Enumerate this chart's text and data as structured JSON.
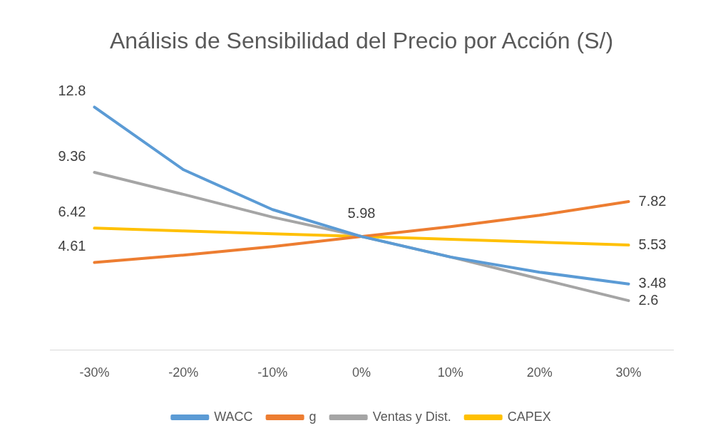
{
  "chart_data": {
    "type": "line",
    "title": "Análisis de Sensibilidad del Precio por Acción (S/)",
    "categories": [
      "-30%",
      "-20%",
      "-10%",
      "0%",
      "10%",
      "20%",
      "30%"
    ],
    "tick_labels": "x",
    "grid": false,
    "legend": "bottom",
    "marker": "none",
    "line_style": "solid",
    "series": [
      {
        "name": "WACC",
        "color": "#5b9bd5",
        "values": [
          12.8,
          9.5,
          7.4,
          5.98,
          4.9,
          4.1,
          3.48
        ],
        "value_labels": [
          "12.8",
          null,
          null,
          null,
          null,
          null,
          "3.48"
        ]
      },
      {
        "name": "g",
        "color": "#ed7d31",
        "values": [
          4.61,
          5.0,
          5.45,
          5.98,
          6.5,
          7.1,
          7.82
        ],
        "value_labels": [
          "4.61",
          null,
          null,
          "5.98",
          null,
          null,
          "7.82"
        ]
      },
      {
        "name": "Ventas y Dist.",
        "color": "#a5a5a5",
        "values": [
          9.36,
          8.2,
          7.0,
          5.98,
          4.9,
          3.75,
          2.6
        ],
        "value_labels": [
          "9.36",
          null,
          null,
          null,
          null,
          null,
          "2.6"
        ]
      },
      {
        "name": "CAPEX",
        "color": "#ffc000",
        "values": [
          6.42,
          6.27,
          6.12,
          5.98,
          5.83,
          5.68,
          5.53
        ],
        "value_labels": [
          "6.42",
          null,
          null,
          null,
          null,
          null,
          "5.53"
        ]
      }
    ]
  }
}
